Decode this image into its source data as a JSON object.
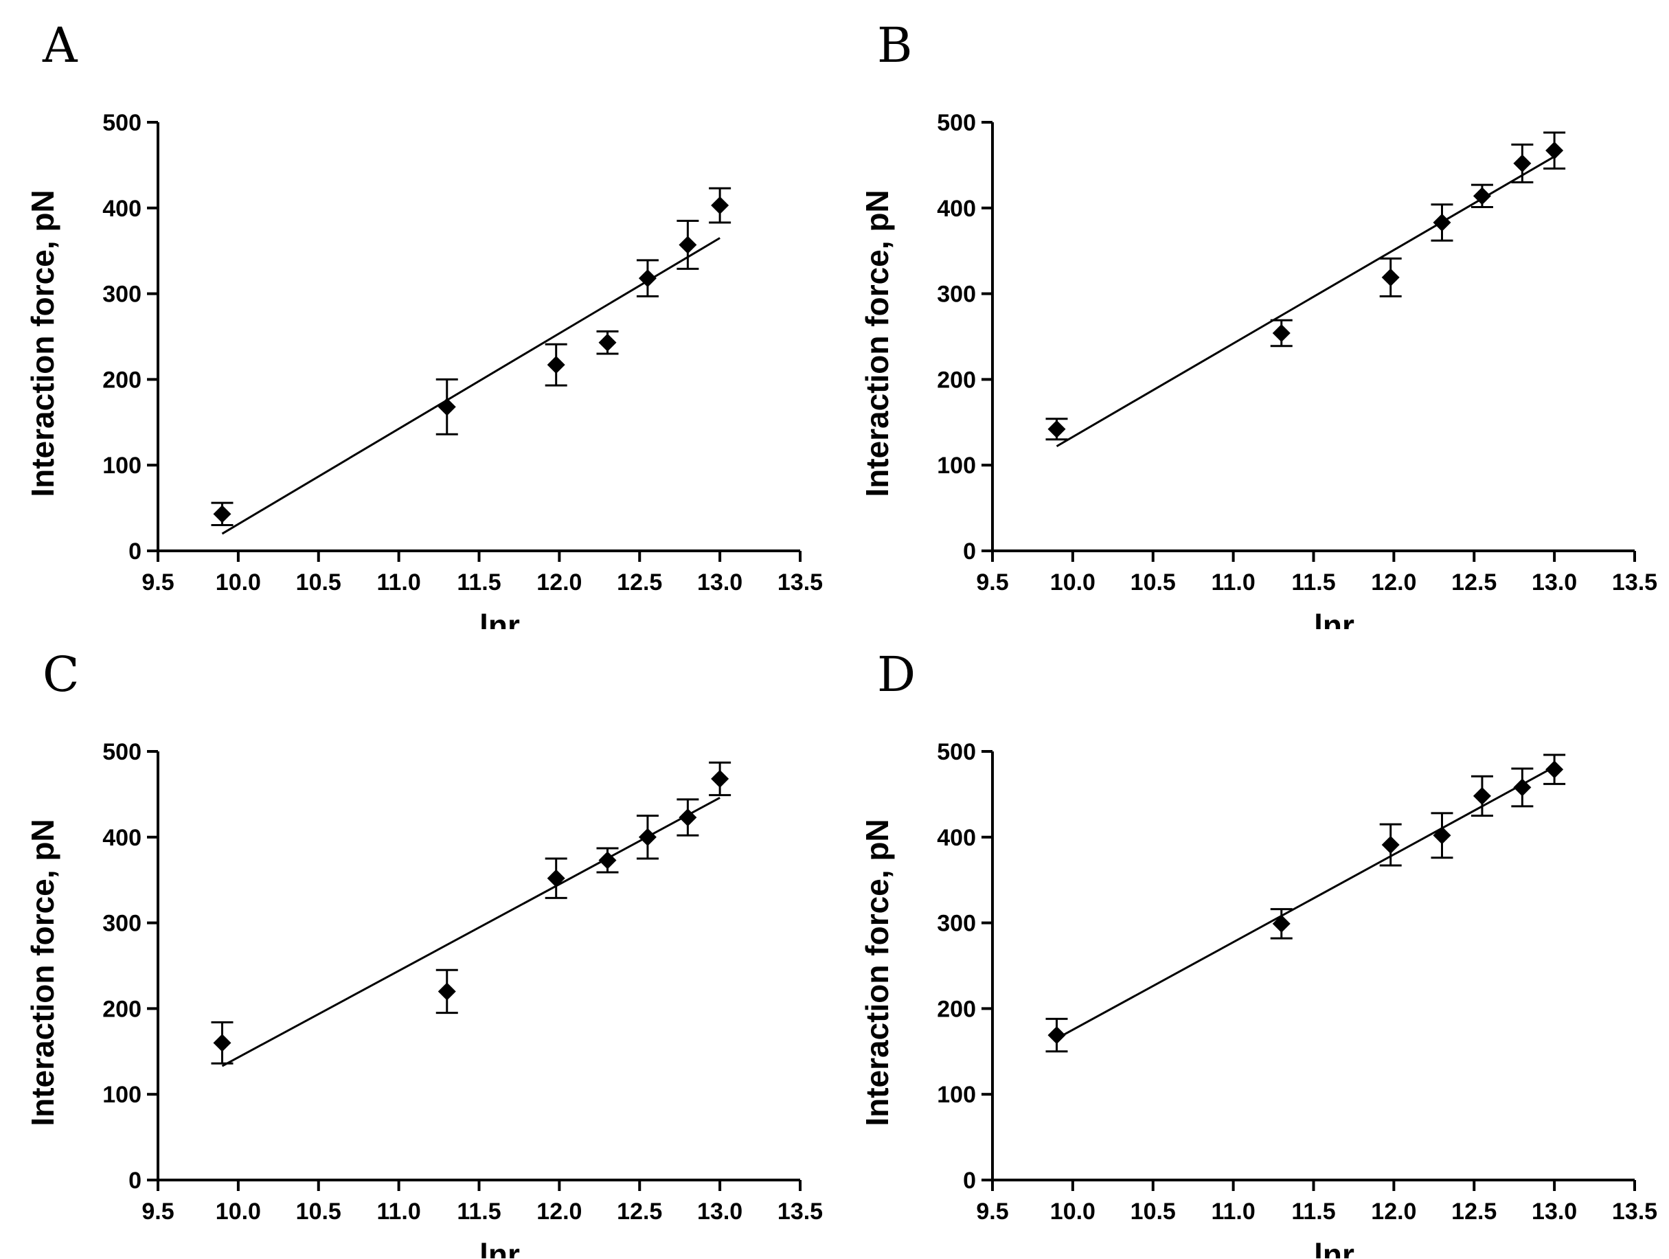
{
  "chart_data": [
    {
      "panel_label": "A",
      "type": "scatter",
      "xlabel": "lnr",
      "ylabel": "Interaction force, pN",
      "xlim": [
        9.5,
        13.5
      ],
      "ylim": [
        0,
        500
      ],
      "xticks": [
        "9.5",
        "10.0",
        "10.5",
        "11.0",
        "11.5",
        "12.0",
        "12.5",
        "13.0",
        "13.5"
      ],
      "yticks": [
        "0",
        "100",
        "200",
        "300",
        "400",
        "500"
      ],
      "x": [
        9.9,
        11.3,
        11.98,
        12.3,
        12.55,
        12.8,
        13.0
      ],
      "y": [
        43,
        168,
        217,
        243,
        318,
        357,
        403
      ],
      "err": [
        13,
        32,
        24,
        13,
        21,
        28,
        20
      ],
      "fit": {
        "x": [
          9.9,
          13.0
        ],
        "y": [
          20,
          365
        ]
      },
      "marker": "diamond",
      "grid": false
    },
    {
      "panel_label": "B",
      "type": "scatter",
      "xlabel": "lnr",
      "ylabel": "Interaction force, pN",
      "xlim": [
        9.5,
        13.5
      ],
      "ylim": [
        0,
        500
      ],
      "xticks": [
        "9.5",
        "10.0",
        "10.5",
        "11.0",
        "11.5",
        "12.0",
        "12.5",
        "13.0",
        "13.5"
      ],
      "yticks": [
        "0",
        "100",
        "200",
        "300",
        "400",
        "500"
      ],
      "x": [
        9.9,
        11.3,
        11.98,
        12.3,
        12.55,
        12.8,
        13.0
      ],
      "y": [
        142,
        254,
        319,
        383,
        414,
        452,
        467
      ],
      "err": [
        12,
        15,
        22,
        21,
        13,
        22,
        21
      ],
      "fit": {
        "x": [
          9.9,
          13.0
        ],
        "y": [
          122,
          460
        ]
      },
      "marker": "diamond",
      "grid": false
    },
    {
      "panel_label": "C",
      "type": "scatter",
      "xlabel": "lnr",
      "ylabel": "Interaction force, pN",
      "xlim": [
        9.5,
        13.5
      ],
      "ylim": [
        0,
        500
      ],
      "xticks": [
        "9.5",
        "10.0",
        "10.5",
        "11.0",
        "11.5",
        "12.0",
        "12.5",
        "13.0",
        "13.5"
      ],
      "yticks": [
        "0",
        "100",
        "200",
        "300",
        "400",
        "500"
      ],
      "x": [
        9.9,
        11.3,
        11.98,
        12.3,
        12.55,
        12.8,
        13.0
      ],
      "y": [
        160,
        220,
        352,
        373,
        400,
        423,
        468
      ],
      "err": [
        24,
        25,
        23,
        14,
        25,
        21,
        19
      ],
      "fit": {
        "x": [
          9.9,
          13.0
        ],
        "y": [
          133,
          446
        ]
      },
      "marker": "diamond",
      "grid": false
    },
    {
      "panel_label": "D",
      "type": "scatter",
      "xlabel": "lnr",
      "ylabel": "Interaction force, pN",
      "xlim": [
        9.5,
        13.5
      ],
      "ylim": [
        0,
        500
      ],
      "xticks": [
        "9.5",
        "10.0",
        "10.5",
        "11.0",
        "11.5",
        "12.0",
        "12.5",
        "13.0",
        "13.5"
      ],
      "yticks": [
        "0",
        "100",
        "200",
        "300",
        "400",
        "500"
      ],
      "x": [
        9.9,
        11.3,
        11.98,
        12.3,
        12.55,
        12.8,
        13.0
      ],
      "y": [
        169,
        299,
        391,
        402,
        448,
        458,
        479
      ],
      "err": [
        19,
        17,
        24,
        26,
        23,
        22,
        17
      ],
      "fit": {
        "x": [
          9.9,
          13.0
        ],
        "y": [
          165,
          482
        ]
      },
      "marker": "diamond",
      "grid": false
    }
  ]
}
